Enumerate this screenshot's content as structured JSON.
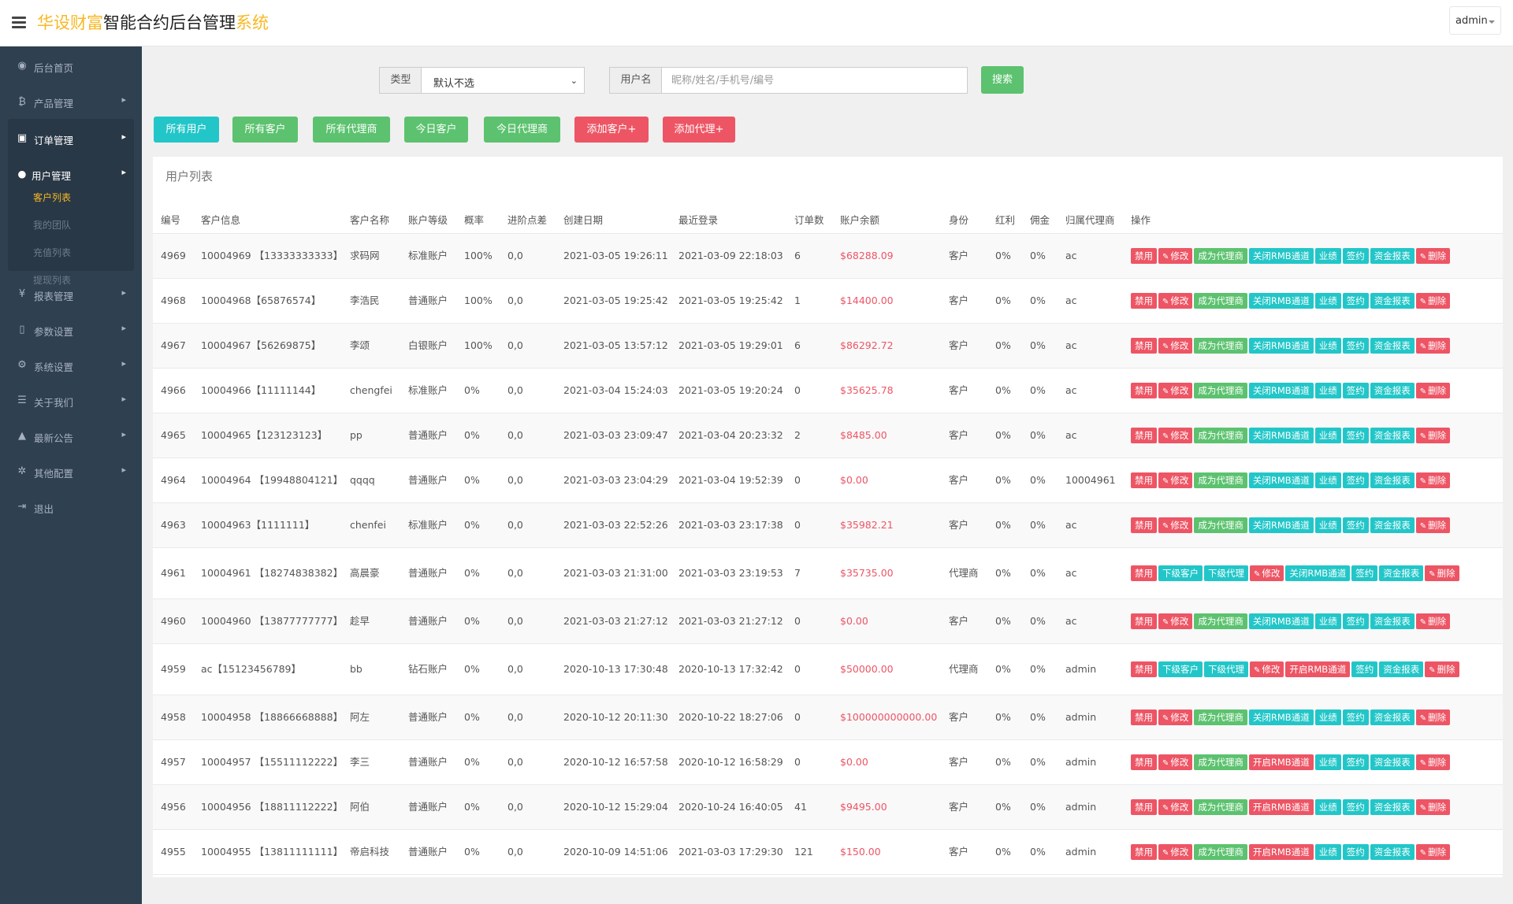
{
  "header": {
    "title_part1": "华设财富",
    "title_part2": "智能合约后台管理",
    "title_part3": "系统",
    "user": "admin"
  },
  "sidebar": {
    "items": [
      {
        "label": "后台首页",
        "icon": "dashboard-icon",
        "glyph": "◉",
        "arrow": false
      },
      {
        "label": "产品管理",
        "icon": "bitcoin-icon",
        "glyph": "₿",
        "arrow": true
      },
      {
        "label": "订单管理",
        "icon": "orders-icon",
        "glyph": "▣",
        "arrow": true
      },
      {
        "label": "用户管理",
        "icon": "user-icon",
        "glyph": "●",
        "arrow": true
      },
      {
        "label": "报表管理",
        "icon": "yen-icon",
        "glyph": "¥",
        "arrow": true
      },
      {
        "label": "参数设置",
        "icon": "file-icon",
        "glyph": "▯",
        "arrow": true
      },
      {
        "label": "系统设置",
        "icon": "cogs-icon",
        "glyph": "⚙",
        "arrow": true
      },
      {
        "label": "关于我们",
        "icon": "list-icon",
        "glyph": "☰",
        "arrow": true
      },
      {
        "label": "最新公告",
        "icon": "bell-icon",
        "glyph": "▲",
        "arrow": true
      },
      {
        "label": "其他配置",
        "icon": "gear-icon",
        "glyph": "✲",
        "arrow": true
      },
      {
        "label": "退出",
        "icon": "logout-icon",
        "glyph": "⇥",
        "arrow": false
      }
    ],
    "submenu": [
      "客户列表",
      "我的团队",
      "充值列表",
      "提现列表"
    ]
  },
  "search": {
    "type_label": "类型",
    "type_value": "默认不选",
    "user_label": "用户名",
    "user_placeholder": "昵称/姓名/手机号/编号",
    "button": "搜索"
  },
  "filters": [
    {
      "label": "所有用户",
      "color": "#23c6c8"
    },
    {
      "label": "所有客户",
      "color": "#5cc26f"
    },
    {
      "label": "所有代理商",
      "color": "#5cc26f"
    },
    {
      "label": "今日客户",
      "color": "#5cc26f"
    },
    {
      "label": "今日代理商",
      "color": "#5cc26f"
    },
    {
      "label": "添加客户+",
      "color": "#ed5565"
    },
    {
      "label": "添加代理+",
      "color": "#ed5565"
    }
  ],
  "panel_title": "用户列表",
  "columns": [
    "编号",
    "客户信息",
    "客户名称",
    "账户等级",
    "概率",
    "进阶点差",
    "创建日期",
    "最近登录",
    "订单数",
    "账户余额",
    "身份",
    "红利",
    "佣金",
    "归属代理商",
    "操作"
  ],
  "ops_customer_close": [
    "禁用",
    "修改",
    "成为代理商",
    "关闭RMB通道",
    "业绩",
    "签约",
    "资金报表",
    "删除"
  ],
  "ops_customer_open": [
    "禁用",
    "修改",
    "成为代理商",
    "开启RMB通道",
    "业绩",
    "签约",
    "资金报表",
    "删除"
  ],
  "ops_agent_close": [
    "禁用",
    "下级客户",
    "下级代理",
    "修改",
    "关闭RMB通道",
    "签约",
    "资金报表",
    "删除"
  ],
  "ops_agent_open": [
    "禁用",
    "下级客户",
    "下级代理",
    "修改",
    "开启RMB通道",
    "签约",
    "资金报表",
    "删除"
  ],
  "rows": [
    {
      "id": "4969",
      "info": "10004969 【13333333333】",
      "name": "求码网",
      "level": "标准账户",
      "rate": "100%",
      "spread": "0,0",
      "created": "2021-03-05 19:26:11",
      "login": "2021-03-09 22:18:03",
      "orders": "6",
      "balance": "$68288.09",
      "role": "客户",
      "bonus": "0%",
      "commission": "0%",
      "agent": "ac",
      "ops": "customer_close"
    },
    {
      "id": "4968",
      "info": "10004968【65876574】",
      "name": "李浩民",
      "level": "普通账户",
      "rate": "100%",
      "spread": "0,0",
      "created": "2021-03-05 19:25:42",
      "login": "2021-03-05 19:25:42",
      "orders": "1",
      "balance": "$14400.00",
      "role": "客户",
      "bonus": "0%",
      "commission": "0%",
      "agent": "ac",
      "ops": "customer_close"
    },
    {
      "id": "4967",
      "info": "10004967【56269875】",
      "name": "李颂",
      "level": "白银账户",
      "rate": "100%",
      "spread": "0,0",
      "created": "2021-03-05 13:57:12",
      "login": "2021-03-05 19:29:01",
      "orders": "6",
      "balance": "$86292.72",
      "role": "客户",
      "bonus": "0%",
      "commission": "0%",
      "agent": "ac",
      "ops": "customer_close"
    },
    {
      "id": "4966",
      "info": "10004966【11111144】",
      "name": "chengfei",
      "level": "标准账户",
      "rate": "0%",
      "spread": "0,0",
      "created": "2021-03-04 15:24:03",
      "login": "2021-03-05 19:20:24",
      "orders": "0",
      "balance": "$35625.78",
      "role": "客户",
      "bonus": "0%",
      "commission": "0%",
      "agent": "ac",
      "ops": "customer_close"
    },
    {
      "id": "4965",
      "info": "10004965【123123123】",
      "name": "pp",
      "level": "普通账户",
      "rate": "0%",
      "spread": "0,0",
      "created": "2021-03-03 23:09:47",
      "login": "2021-03-04 20:23:32",
      "orders": "2",
      "balance": "$8485.00",
      "role": "客户",
      "bonus": "0%",
      "commission": "0%",
      "agent": "ac",
      "ops": "customer_close"
    },
    {
      "id": "4964",
      "info": "10004964 【19948804121】",
      "name": "qqqq",
      "level": "普通账户",
      "rate": "0%",
      "spread": "0,0",
      "created": "2021-03-03 23:04:29",
      "login": "2021-03-04 19:52:39",
      "orders": "0",
      "balance": "$0.00",
      "role": "客户",
      "bonus": "0%",
      "commission": "0%",
      "agent": "10004961",
      "ops": "customer_close"
    },
    {
      "id": "4963",
      "info": "10004963【1111111】",
      "name": "chenfei",
      "level": "标准账户",
      "rate": "0%",
      "spread": "0,0",
      "created": "2021-03-03 22:52:26",
      "login": "2021-03-03 23:17:38",
      "orders": "0",
      "balance": "$35982.21",
      "role": "客户",
      "bonus": "0%",
      "commission": "0%",
      "agent": "ac",
      "ops": "customer_close"
    },
    {
      "id": "4961",
      "info": "10004961 【18274838382】",
      "name": "高晨豪",
      "level": "普通账户",
      "rate": "0%",
      "spread": "0,0",
      "created": "2021-03-03 21:31:00",
      "login": "2021-03-03 23:19:53",
      "orders": "7",
      "balance": "$35735.00",
      "role": "代理商",
      "bonus": "0%",
      "commission": "0%",
      "agent": "ac",
      "ops": "agent_close"
    },
    {
      "id": "4960",
      "info": "10004960 【13877777777】",
      "name": "趁早",
      "level": "普通账户",
      "rate": "0%",
      "spread": "0,0",
      "created": "2021-03-03 21:27:12",
      "login": "2021-03-03 21:27:12",
      "orders": "0",
      "balance": "$0.00",
      "role": "客户",
      "bonus": "0%",
      "commission": "0%",
      "agent": "ac",
      "ops": "customer_close"
    },
    {
      "id": "4959",
      "info": "ac【15123456789】",
      "name": "bb",
      "level": "钻石账户",
      "rate": "0%",
      "spread": "0,0",
      "created": "2020-10-13 17:30:48",
      "login": "2020-10-13 17:32:42",
      "orders": "0",
      "balance": "$50000.00",
      "role": "代理商",
      "bonus": "0%",
      "commission": "0%",
      "agent": "admin",
      "ops": "agent_open"
    },
    {
      "id": "4958",
      "info": "10004958 【18866668888】",
      "name": "阿左",
      "level": "普通账户",
      "rate": "0%",
      "spread": "0,0",
      "created": "2020-10-12 20:11:30",
      "login": "2020-10-22 18:27:06",
      "orders": "0",
      "balance": "$100000000000.00",
      "role": "客户",
      "bonus": "0%",
      "commission": "0%",
      "agent": "admin",
      "ops": "customer_close"
    },
    {
      "id": "4957",
      "info": "10004957 【15511112222】",
      "name": "李三",
      "level": "普通账户",
      "rate": "0%",
      "spread": "0,0",
      "created": "2020-10-12 16:57:58",
      "login": "2020-10-12 16:58:29",
      "orders": "0",
      "balance": "$0.00",
      "role": "客户",
      "bonus": "0%",
      "commission": "0%",
      "agent": "admin",
      "ops": "customer_open"
    },
    {
      "id": "4956",
      "info": "10004956 【18811112222】",
      "name": "阿伯",
      "level": "普通账户",
      "rate": "0%",
      "spread": "0,0",
      "created": "2020-10-12 15:29:04",
      "login": "2020-10-24 16:40:05",
      "orders": "41",
      "balance": "$9495.00",
      "role": "客户",
      "bonus": "0%",
      "commission": "0%",
      "agent": "admin",
      "ops": "customer_open"
    },
    {
      "id": "4955",
      "info": "10004955 【13811111111】",
      "name": "帝启科技",
      "level": "普通账户",
      "rate": "0%",
      "spread": "0,0",
      "created": "2020-10-09 14:51:06",
      "login": "2021-03-03 17:29:30",
      "orders": "121",
      "balance": "$150.00",
      "role": "客户",
      "bonus": "0%",
      "commission": "0%",
      "agent": "admin",
      "ops": "customer_open"
    }
  ],
  "colors": {
    "accent_yellow": "#f7b824",
    "sidebar_bg": "#2f4050",
    "btn_red": "#ed5565",
    "btn_green": "#5cc26f",
    "btn_teal": "#23c6c8"
  }
}
